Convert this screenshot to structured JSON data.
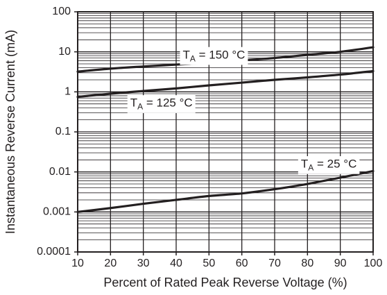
{
  "chart_data": {
    "type": "line",
    "title": "",
    "xlabel": "Percent of Rated Peak Reverse Voltage (%)",
    "ylabel": "Instantaneous Reverse Current (mA)",
    "xlim": [
      10,
      100
    ],
    "ylim": [
      0.0001,
      100
    ],
    "y_scale": "log",
    "grid": true,
    "x_ticks": [
      10,
      20,
      30,
      40,
      50,
      60,
      70,
      80,
      90,
      100
    ],
    "x_tick_labels": [
      "10",
      "20",
      "30",
      "40",
      "50",
      "60",
      "70",
      "80",
      "90",
      "100"
    ],
    "y_ticks": [
      0.0001,
      0.001,
      0.01,
      0.1,
      1,
      10,
      100
    ],
    "y_tick_labels": [
      "0.0001",
      "0.001",
      "0.01",
      "0.1",
      "1",
      "10",
      "100"
    ],
    "series": [
      {
        "sub": "A",
        "rest": " = 150 °C",
        "x": [
          10,
          20,
          30,
          40,
          50,
          60,
          70,
          80,
          90,
          100
        ],
        "y": [
          3.2,
          3.8,
          4.3,
          4.8,
          5.3,
          6.1,
          7.0,
          8.4,
          10.0,
          13.0
        ]
      },
      {
        "sub": "A",
        "rest": " = 125 °C",
        "x": [
          10,
          20,
          30,
          40,
          50,
          60,
          70,
          80,
          90,
          100
        ],
        "y": [
          0.75,
          0.9,
          1.05,
          1.22,
          1.45,
          1.7,
          2.0,
          2.3,
          2.7,
          3.3
        ]
      },
      {
        "sub": "A",
        "rest": " = 25 °C",
        "x": [
          10,
          20,
          30,
          40,
          50,
          60,
          70,
          80,
          90,
          100
        ],
        "y": [
          0.001,
          0.00125,
          0.0016,
          0.002,
          0.0025,
          0.0029,
          0.0037,
          0.005,
          0.0072,
          0.0105
        ]
      }
    ],
    "annotations": [
      {
        "prefix": "T",
        "sub": "A",
        "rest": " = 150 °C",
        "x": 42,
        "y": 8
      },
      {
        "prefix": "T",
        "sub": "A",
        "rest": " = 125 °C",
        "x": 26,
        "y": 0.5
      },
      {
        "prefix": "T",
        "sub": "A",
        "rest": " = 25 °C",
        "x": 78,
        "y": 0.015
      }
    ],
    "colors": {
      "line": "#231f20",
      "grid": "#231f20",
      "background": "#ffffff"
    }
  }
}
